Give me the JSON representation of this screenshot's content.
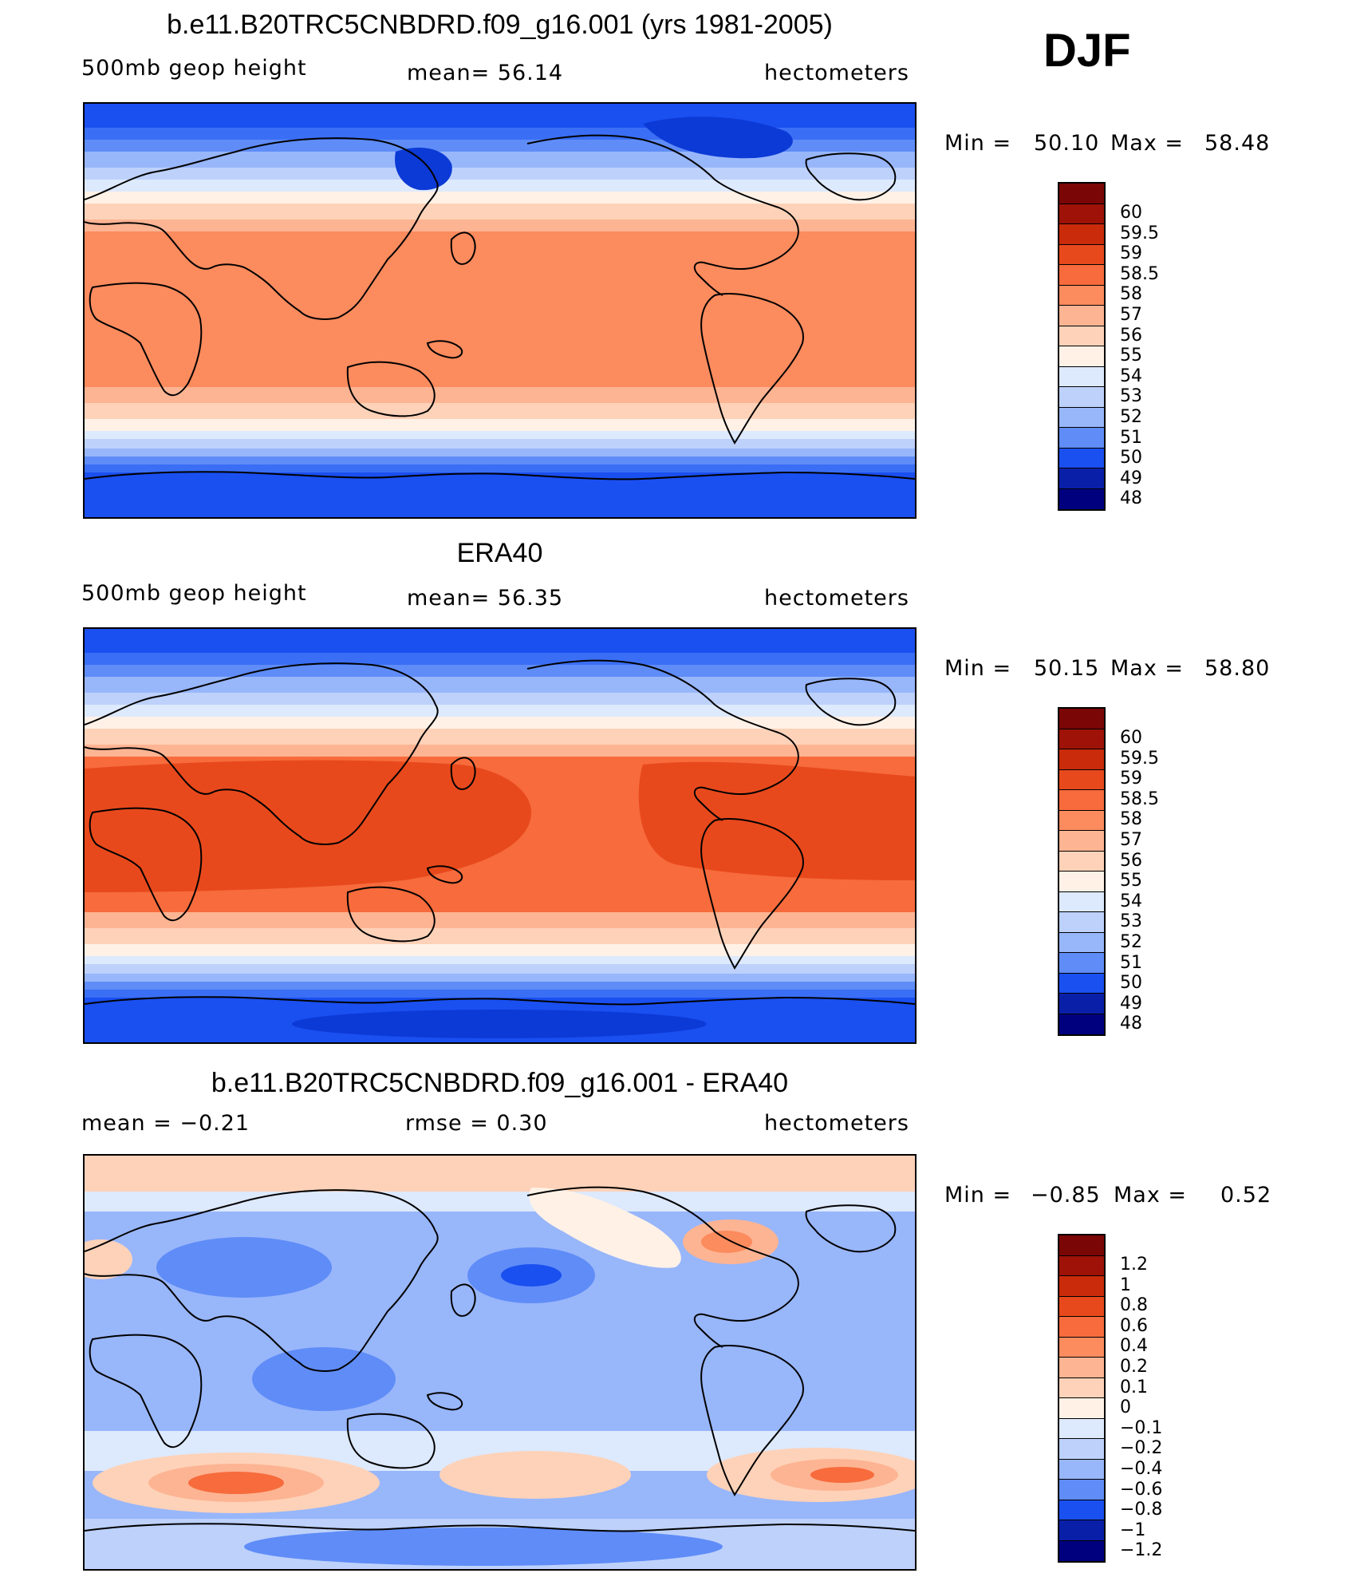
{
  "season": "DJF",
  "colors": {
    "geop": [
      "#00007F",
      "#0A1FA8",
      "#0C3AD6",
      "#1A4FF0",
      "#3A6EF5",
      "#5F8CF7",
      "#98B6FA",
      "#BDD1FB",
      "#DDE9FD",
      "#FFF1E6",
      "#FED2B8",
      "#FDB493",
      "#FC8B5E",
      "#F76B3C",
      "#E8491C",
      "#C92B0B",
      "#9E1208",
      "#7A0606"
    ],
    "diff": [
      "#00007F",
      "#0A1FA8",
      "#0C3AD6",
      "#1A4FF0",
      "#3A6EF5",
      "#5F8CF7",
      "#98B6FA",
      "#BDD1FB",
      "#DDE9FD",
      "#FFF1E6",
      "#FED2B8",
      "#FDB493",
      "#FC8B5E",
      "#F76B3C",
      "#E8491C",
      "#C92B0B",
      "#9E1208",
      "#7A0606"
    ]
  },
  "panels": [
    {
      "title": "b.e11.B20TRC5CNBDRD.f09_g16.001 (yrs 1981-2005)",
      "left_label": "500mb  geop  height",
      "center_label": "mean=   56.14",
      "right_label": "hectometers",
      "min_label": "Min  =",
      "min_value": "50.10",
      "max_label": "Max  =",
      "max_value": "58.48",
      "colorbar_labels": [
        "60",
        "59.5",
        "59",
        "58.5",
        "58",
        "57",
        "56",
        "55",
        "54",
        "53",
        "52",
        "51",
        "50",
        "49",
        "48"
      ],
      "field": "model"
    },
    {
      "title": "ERA40",
      "left_label": "500mb  geop  height",
      "center_label": "mean=   56.35",
      "right_label": "hectometers",
      "min_label": "Min  =",
      "min_value": "50.15",
      "max_label": "Max  =",
      "max_value": "58.80",
      "colorbar_labels": [
        "60",
        "59.5",
        "59",
        "58.5",
        "58",
        "57",
        "56",
        "55",
        "54",
        "53",
        "52",
        "51",
        "50",
        "49",
        "48"
      ],
      "field": "obs"
    },
    {
      "title": "b.e11.B20TRC5CNBDRD.f09_g16.001 - ERA40",
      "left_label": "mean  =    −0.21",
      "center_label": "rmse  =     0.30",
      "right_label": "hectometers",
      "min_label": "Min  =",
      "min_value": "−0.85",
      "max_label": "Max  =",
      "max_value": "0.52",
      "colorbar_labels": [
        "1.2",
        "1",
        "0.8",
        "0.6",
        "0.4",
        "0.2",
        "0.1",
        "0",
        "−0.1",
        "−0.2",
        "−0.4",
        "−0.6",
        "−0.8",
        "−1",
        "−1.2"
      ],
      "field": "diff"
    }
  ]
}
